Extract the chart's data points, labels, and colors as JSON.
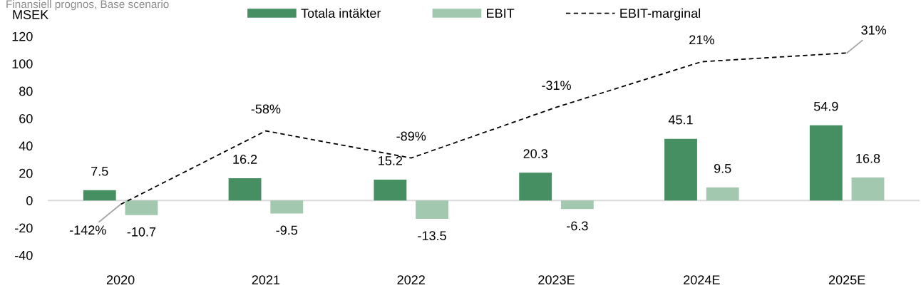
{
  "chart_data": {
    "type": "bar",
    "title": "Finansiell prognos, Base scenario",
    "ylabel": "MSEK",
    "categories": [
      "2020",
      "2021",
      "2022",
      "2023E",
      "2024E",
      "2025E"
    ],
    "series": [
      {
        "name": "Totala intäkter",
        "color": "#468f62",
        "values": [
          7.5,
          16.2,
          15.2,
          20.3,
          45.1,
          54.9
        ],
        "value_labels": [
          "7.5",
          "16.2",
          "15.2",
          "20.3",
          "45.1",
          "54.9"
        ]
      },
      {
        "name": "EBIT",
        "color": "#a2c8b0",
        "values": [
          -10.7,
          -9.5,
          -13.5,
          -6.3,
          9.5,
          16.8
        ],
        "value_labels": [
          "-10.7",
          "-9.5",
          "-13.5",
          "-6.3",
          "9.5",
          "16.8"
        ]
      },
      {
        "name": "EBIT-marginal",
        "type": "line",
        "axis": "y2",
        "color": "#000000",
        "line_style": "dashed",
        "values": [
          -142,
          -58,
          -89,
          -31,
          21,
          31
        ],
        "value_labels": [
          "-142%",
          "-58%",
          "-89%",
          "-31%",
          "21%",
          "31%"
        ]
      }
    ],
    "ylim": [
      -40,
      120
    ],
    "yticks": [
      -40,
      -20,
      0,
      20,
      40,
      60,
      80,
      100,
      120
    ],
    "ref_lines": [
      {
        "axis": "y",
        "value": 0,
        "color": "#d9d9d9"
      }
    ],
    "legend": "top",
    "grid": false
  }
}
